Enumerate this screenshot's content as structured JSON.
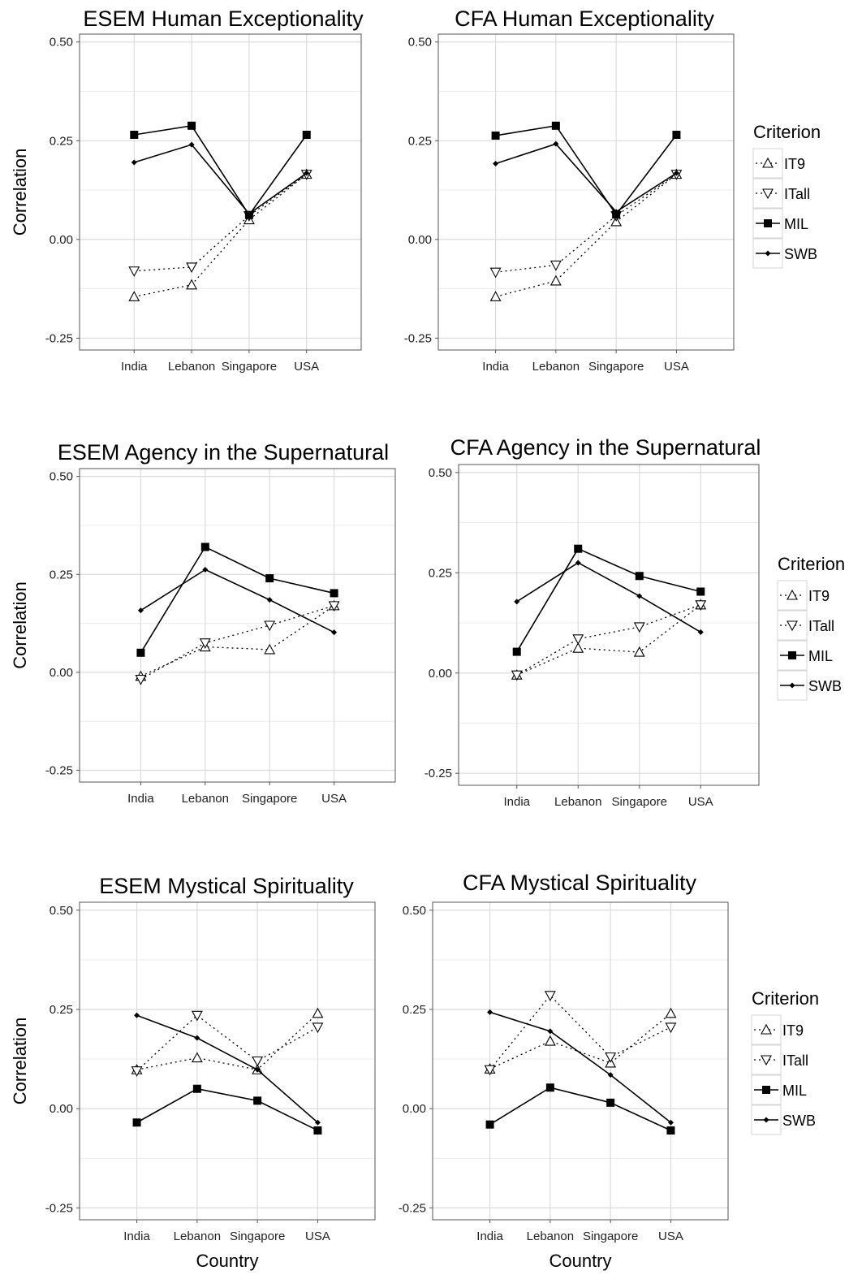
{
  "chart_data": [
    {
      "type": "line",
      "title": "ESEM Human Exceptionality",
      "ylabel": "Correlation",
      "xlabel": "",
      "categories": [
        "India",
        "Lebanon",
        "Singapore",
        "USA"
      ],
      "ylim": [
        -0.28,
        0.52
      ],
      "yticks": [
        "0.50",
        "0.25",
        "0.00",
        "-0.25"
      ],
      "series": [
        {
          "name": "IT9",
          "values": [
            -0.145,
            -0.115,
            0.05,
            0.165
          ]
        },
        {
          "name": "ITall",
          "values": [
            -0.08,
            -0.07,
            0.06,
            0.165
          ]
        },
        {
          "name": "MIL",
          "values": [
            0.265,
            0.288,
            0.062,
            0.265
          ]
        },
        {
          "name": "SWB",
          "values": [
            0.195,
            0.24,
            0.065,
            0.168
          ]
        }
      ]
    },
    {
      "type": "line",
      "title": "CFA Human Exceptionality",
      "ylabel": "",
      "xlabel": "",
      "categories": [
        "India",
        "Lebanon",
        "Singapore",
        "USA"
      ],
      "ylim": [
        -0.28,
        0.52
      ],
      "yticks": [
        "0.50",
        "0.25",
        "0.00",
        "-0.25"
      ],
      "series": [
        {
          "name": "IT9",
          "values": [
            -0.145,
            -0.105,
            0.045,
            0.165
          ]
        },
        {
          "name": "ITall",
          "values": [
            -0.083,
            -0.065,
            0.06,
            0.165
          ]
        },
        {
          "name": "MIL",
          "values": [
            0.263,
            0.288,
            0.063,
            0.265
          ]
        },
        {
          "name": "SWB",
          "values": [
            0.192,
            0.242,
            0.07,
            0.168
          ]
        }
      ]
    },
    {
      "type": "line",
      "title": "ESEM Agency in the Supernatural",
      "ylabel": "Correlation",
      "xlabel": "",
      "categories": [
        "India",
        "Lebanon",
        "Singapore",
        "USA"
      ],
      "ylim": [
        -0.28,
        0.52
      ],
      "yticks": [
        "0.50",
        "0.25",
        "0.00",
        "-0.25"
      ],
      "series": [
        {
          "name": "IT9",
          "values": [
            -0.01,
            0.065,
            0.058,
            0.17
          ]
        },
        {
          "name": "ITall",
          "values": [
            -0.018,
            0.075,
            0.12,
            0.17
          ]
        },
        {
          "name": "MIL",
          "values": [
            0.05,
            0.32,
            0.24,
            0.202
          ]
        },
        {
          "name": "SWB",
          "values": [
            0.158,
            0.262,
            0.185,
            0.102
          ]
        }
      ]
    },
    {
      "type": "line",
      "title": "CFA Agency in the Supernatural",
      "ylabel": "",
      "xlabel": "",
      "categories": [
        "India",
        "Lebanon",
        "Singapore",
        "USA"
      ],
      "ylim": [
        -0.28,
        0.52
      ],
      "yticks": [
        "0.50",
        "0.25",
        "0.00",
        "-0.25"
      ],
      "series": [
        {
          "name": "IT9",
          "values": [
            -0.005,
            0.062,
            0.052,
            0.17
          ]
        },
        {
          "name": "ITall",
          "values": [
            -0.005,
            0.085,
            0.115,
            0.17
          ]
        },
        {
          "name": "MIL",
          "values": [
            0.053,
            0.31,
            0.242,
            0.203
          ]
        },
        {
          "name": "SWB",
          "values": [
            0.178,
            0.275,
            0.192,
            0.102
          ]
        }
      ]
    },
    {
      "type": "line",
      "title": "ESEM Mystical Spirituality",
      "ylabel": "Correlation",
      "xlabel": "Country",
      "categories": [
        "India",
        "Lebanon",
        "Singapore",
        "USA"
      ],
      "ylim": [
        -0.28,
        0.52
      ],
      "yticks": [
        "0.50",
        "0.25",
        "0.00",
        "-0.25"
      ],
      "series": [
        {
          "name": "IT9",
          "values": [
            0.098,
            0.128,
            0.098,
            0.24
          ]
        },
        {
          "name": "ITall",
          "values": [
            0.095,
            0.235,
            0.12,
            0.205
          ]
        },
        {
          "name": "MIL",
          "values": [
            -0.035,
            0.05,
            0.02,
            -0.055
          ]
        },
        {
          "name": "SWB",
          "values": [
            0.235,
            0.178,
            0.098,
            -0.035
          ]
        }
      ]
    },
    {
      "type": "line",
      "title": "CFA Mystical Spirituality",
      "ylabel": "",
      "xlabel": "Country",
      "categories": [
        "India",
        "Lebanon",
        "Singapore",
        "USA"
      ],
      "ylim": [
        -0.28,
        0.52
      ],
      "yticks": [
        "0.50",
        "0.25",
        "0.00",
        "-0.25"
      ],
      "series": [
        {
          "name": "IT9",
          "values": [
            0.1,
            0.17,
            0.115,
            0.24
          ]
        },
        {
          "name": "ITall",
          "values": [
            0.098,
            0.285,
            0.13,
            0.205
          ]
        },
        {
          "name": "MIL",
          "values": [
            -0.04,
            0.053,
            0.015,
            -0.055
          ]
        },
        {
          "name": "SWB",
          "values": [
            0.243,
            0.195,
            0.085,
            -0.035
          ]
        }
      ]
    }
  ],
  "legends": [
    {
      "title": "Criterion",
      "items": [
        "IT9",
        "ITall",
        "MIL",
        "SWB"
      ]
    },
    {
      "title": "Criterion",
      "items": [
        "IT9",
        "ITall",
        "MIL",
        "SWB"
      ]
    },
    {
      "title": "Criterion",
      "items": [
        "IT9",
        "ITall",
        "MIL",
        "SWB"
      ]
    }
  ]
}
